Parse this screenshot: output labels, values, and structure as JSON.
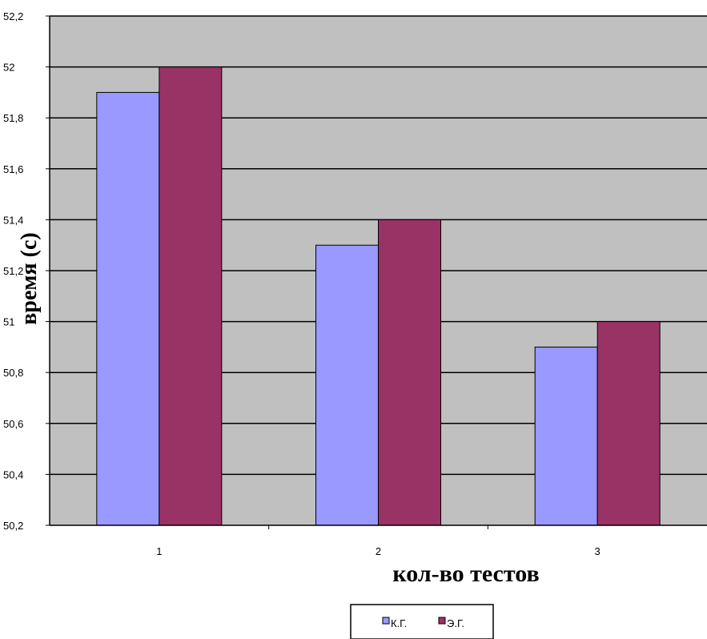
{
  "chart_data": {
    "type": "bar",
    "title": "",
    "xlabel": "кол-во тестов",
    "ylabel": "время (с)",
    "categories": [
      "1",
      "2",
      "3"
    ],
    "series": [
      {
        "name": "К.Г.",
        "values": [
          51.9,
          51.3,
          50.9
        ],
        "color": "#9999ff"
      },
      {
        "name": "Э.Г.",
        "values": [
          52.0,
          51.4,
          51.0
        ],
        "color": "#993366"
      }
    ],
    "ylim": [
      50.2,
      52.2
    ],
    "yticks": [
      "50,2",
      "50,4",
      "50,6",
      "50,8",
      "51",
      "51,2",
      "51,4",
      "51,6",
      "51,8",
      "52",
      "52,2"
    ],
    "grid": true,
    "plot_background": "#c0c0c0",
    "legend_position": "bottom"
  }
}
